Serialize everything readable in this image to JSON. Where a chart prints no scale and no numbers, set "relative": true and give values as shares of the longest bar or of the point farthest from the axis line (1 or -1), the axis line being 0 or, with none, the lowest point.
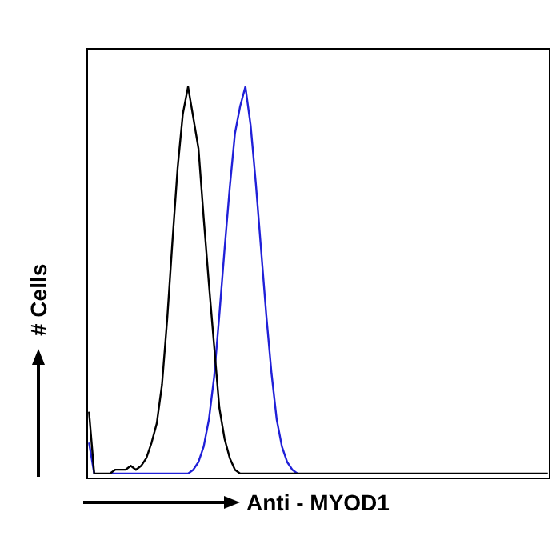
{
  "chart_data": {
    "type": "line",
    "xlabel": "Anti - MYOD1",
    "ylabel": "# Cells",
    "relative": true,
    "categories": [
      null,
      null,
      null,
      null,
      null,
      null,
      null,
      null,
      null,
      null,
      null,
      null,
      null,
      null,
      null,
      null,
      null,
      null,
      null,
      null,
      null,
      null,
      null,
      null,
      null,
      null,
      null,
      null,
      null,
      null,
      null,
      null,
      null,
      null,
      null,
      null,
      null,
      null,
      null,
      null,
      null,
      null,
      null,
      null,
      null,
      null,
      null,
      null,
      null,
      null,
      null,
      null,
      null,
      null,
      null,
      null,
      null,
      null,
      null,
      null,
      null,
      null,
      null,
      null,
      null,
      null,
      null,
      null,
      null,
      null,
      null,
      null,
      null,
      null,
      null,
      null,
      null,
      null,
      null,
      null,
      null,
      null,
      null,
      null,
      null,
      null,
      null,
      null,
      null
    ],
    "series": [
      {
        "color": "#000000",
        "values": [
          0.16,
          0,
          0,
          0,
          0,
          0.01,
          0.01,
          0.01,
          0.02,
          0.01,
          0.02,
          0.04,
          0.08,
          0.13,
          0.23,
          0.4,
          0.6,
          0.79,
          0.93,
          1.0,
          0.92,
          0.84,
          0.66,
          0.49,
          0.33,
          0.17,
          0.09,
          0.04,
          0.01,
          0,
          0,
          0,
          0,
          0,
          0,
          0,
          0,
          0,
          0,
          0,
          0,
          0,
          0,
          0,
          0,
          0,
          0,
          0,
          0,
          0,
          0,
          0,
          0,
          0,
          0,
          0,
          0,
          0,
          0,
          0,
          0,
          0,
          0,
          0,
          0,
          0,
          0,
          0,
          0,
          0,
          0,
          0,
          0,
          0,
          0,
          0,
          0,
          0,
          0,
          0,
          0,
          0,
          0,
          0,
          0,
          0,
          0,
          0,
          0
        ]
      },
      {
        "color": "#2020d8",
        "values": [
          0.08,
          0,
          null,
          null,
          0,
          0,
          0,
          0,
          0,
          0,
          0,
          0,
          0,
          0,
          0,
          0,
          0,
          0,
          0,
          0,
          0.01,
          0.03,
          0.07,
          0.14,
          0.25,
          0.41,
          0.58,
          0.74,
          0.88,
          0.95,
          1.0,
          0.9,
          0.75,
          0.58,
          0.41,
          0.26,
          0.14,
          0.07,
          0.03,
          0.01,
          0,
          null,
          null,
          null,
          null,
          null,
          null,
          null,
          null,
          null,
          null,
          null,
          null,
          null,
          null,
          null,
          null,
          null,
          null,
          null,
          null,
          null,
          null,
          null,
          null,
          null,
          null,
          null,
          null,
          null,
          null,
          null,
          null,
          null,
          null,
          null,
          null,
          null,
          null,
          null,
          null,
          null,
          null,
          null,
          null,
          null,
          null,
          null,
          null
        ]
      }
    ]
  }
}
